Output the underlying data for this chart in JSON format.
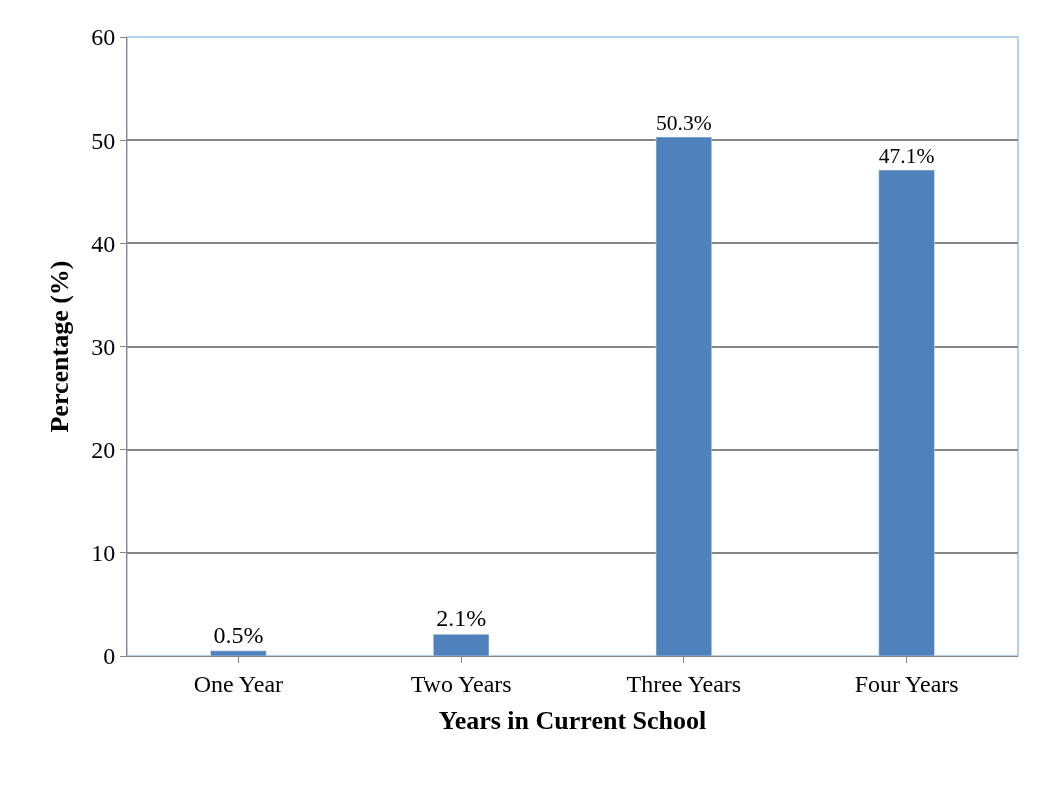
{
  "chart_data": {
    "type": "bar",
    "xlabel": "Years in Current School",
    "ylabel": "Percentage (%)",
    "categories": [
      "One Year",
      "Two Years",
      "Three Years",
      "Four Years"
    ],
    "values": [
      0.5,
      2.1,
      50.3,
      47.1
    ],
    "value_labels": [
      "0.5%",
      "2.1%",
      "50.3%",
      "47.1%"
    ],
    "color": "#4f81bd",
    "ylim": [
      0,
      60
    ],
    "yticks": [
      0,
      10,
      20,
      30,
      40,
      50,
      60
    ],
    "grid": "y",
    "legend": false
  }
}
